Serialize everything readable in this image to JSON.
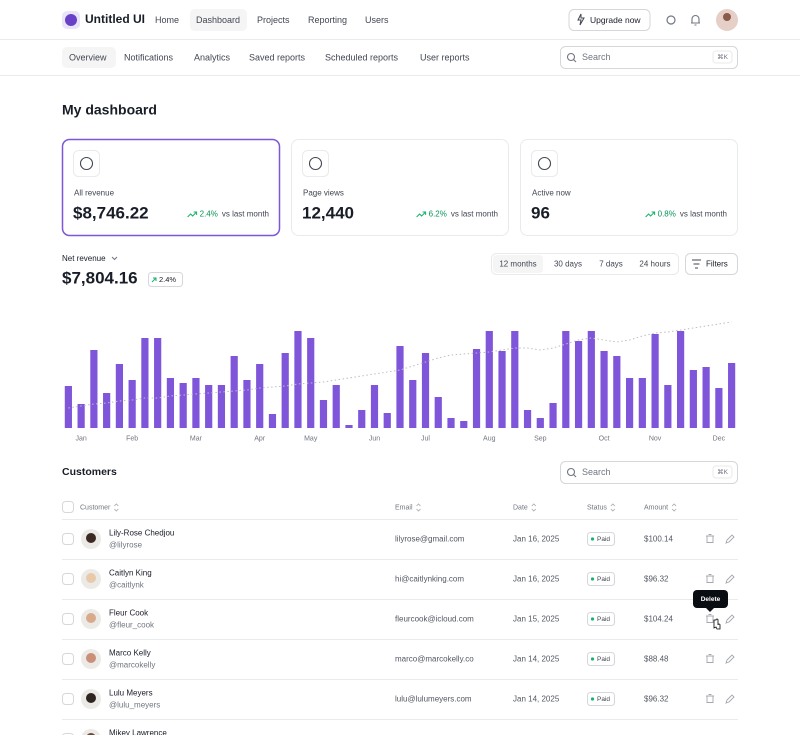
{
  "nav": {
    "brand": "Untitled UI",
    "links": [
      "Home",
      "Dashboard",
      "Projects",
      "Reporting",
      "Users"
    ],
    "upgrade": "Upgrade now"
  },
  "tabs": [
    "Overview",
    "Notifications",
    "Analytics",
    "Saved reports",
    "Scheduled reports",
    "User reports"
  ],
  "search": {
    "placeholder": "Search",
    "shortcut": "⌘K"
  },
  "page_title": "My dashboard",
  "stats": [
    {
      "label": "All revenue",
      "value": "$8,746.22",
      "change": "2.4%",
      "compare": "vs last month"
    },
    {
      "label": "Page views",
      "value": "12,440",
      "change": "6.2%",
      "compare": "vs last month"
    },
    {
      "label": "Active now",
      "value": "96",
      "change": "0.8%",
      "compare": "vs last month"
    }
  ],
  "revenue": {
    "label": "Net revenue",
    "value": "$7,804.16",
    "change": "2.4%",
    "ranges": [
      "12 months",
      "30 days",
      "7 days",
      "24 hours"
    ],
    "filters": "Filters"
  },
  "chart_data": {
    "type": "bar",
    "ylim": [
      0,
      110
    ],
    "categories": [
      null,
      "Jan",
      null,
      null,
      null,
      "Feb",
      null,
      null,
      null,
      null,
      "Mar",
      null,
      null,
      null,
      null,
      "Apr",
      null,
      null,
      null,
      "May",
      null,
      null,
      null,
      null,
      "Jun",
      null,
      null,
      null,
      "Jul",
      null,
      null,
      null,
      null,
      "Aug",
      null,
      null,
      null,
      "Sep",
      null,
      null,
      null,
      null,
      "Oct",
      null,
      null,
      null,
      "Nov",
      null,
      null,
      null,
      null,
      "Dec",
      null
    ],
    "series": [
      {
        "type": "bar",
        "color": "#7f56d9",
        "values": [
          42,
          24,
          78,
          35,
          64,
          48,
          90,
          90,
          50,
          45,
          50,
          43,
          43,
          72,
          48,
          64,
          14,
          75,
          97,
          90,
          28,
          43,
          3,
          18,
          43,
          15,
          82,
          48,
          75,
          31,
          10,
          7,
          79,
          97,
          77,
          97,
          18,
          10,
          25,
          97,
          87,
          97,
          77,
          72,
          50,
          50,
          94,
          43,
          97,
          58,
          61,
          40,
          65
        ]
      },
      {
        "type": "line",
        "color": "#bdbdc6",
        "dashed": true,
        "values": [
          20,
          22,
          24,
          25,
          27,
          28,
          30,
          30,
          32,
          33,
          34,
          35,
          36,
          37,
          38,
          40,
          41,
          42,
          44,
          45,
          46,
          48,
          50,
          52,
          54,
          56,
          58,
          62,
          66,
          70,
          73,
          74,
          75,
          76,
          78,
          80,
          80,
          78,
          80,
          84,
          88,
          90,
          88,
          86,
          88,
          92,
          95,
          96,
          98,
          100,
          102,
          104,
          106
        ]
      }
    ]
  },
  "customers": {
    "title": "Customers",
    "search": "Search",
    "shortcut": "⌘K",
    "columns": [
      "Customer",
      "Email",
      "Date",
      "Status",
      "Amount"
    ],
    "tooltip": "Delete",
    "rows": [
      {
        "name": "Lily-Rose Chedjou",
        "handle": "@lilyrose",
        "email": "lilyrose@gmail.com",
        "date": "Jan 16, 2025",
        "status": "Paid",
        "amount": "$100.14"
      },
      {
        "name": "Caitlyn King",
        "handle": "@caitlynk",
        "email": "hi@caitlynking.com",
        "date": "Jan 16, 2025",
        "status": "Paid",
        "amount": "$96.32"
      },
      {
        "name": "Fleur Cook",
        "handle": "@fleur_cook",
        "email": "fleurcook@icloud.com",
        "date": "Jan 15, 2025",
        "status": "Paid",
        "amount": "$104.24"
      },
      {
        "name": "Marco Kelly",
        "handle": "@marcokelly",
        "email": "marco@marcokelly.co",
        "date": "Jan 14, 2025",
        "status": "Paid",
        "amount": "$88.48"
      },
      {
        "name": "Lulu Meyers",
        "handle": "@lulu_meyers",
        "email": "lulu@lulumeyers.com",
        "date": "Jan 14, 2025",
        "status": "Paid",
        "amount": "$96.32"
      },
      {
        "name": "Mikey Lawrence"
      }
    ]
  }
}
